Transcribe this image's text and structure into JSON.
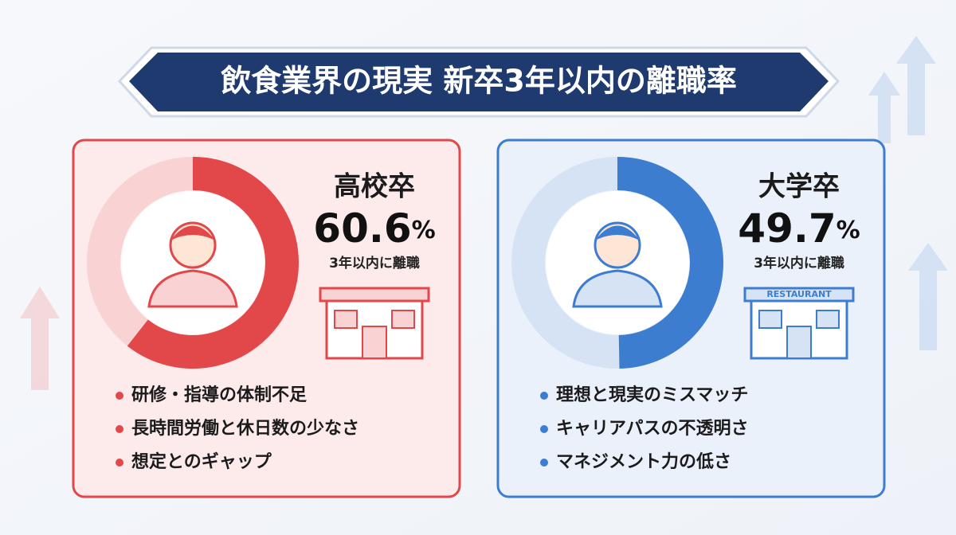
{
  "title": "飲食業界の現実 新卒3年以内の離職率",
  "panels": [
    {
      "heading": "高校卒",
      "value": 60.6,
      "unit": "%",
      "caption": "3年以内に離職",
      "color": "#e2474a",
      "track": "#f9d2d3",
      "bg": "#fdeaeb",
      "reasons": [
        "研修・指導の体制不足",
        "長時間労働と休日数の少なさ",
        "想定とのギャップ"
      ]
    },
    {
      "heading": "大学卒",
      "value": 49.7,
      "unit": "%",
      "caption": "3年以内に離職",
      "color": "#3d7dd0",
      "track": "#d5e3f5",
      "bg": "#eaf1fb",
      "sign": "RESTAURANT",
      "reasons": [
        "理想と現実のミスマッチ",
        "キャリアパスの不透明さ",
        "マネジメント力の低さ"
      ]
    }
  ]
}
